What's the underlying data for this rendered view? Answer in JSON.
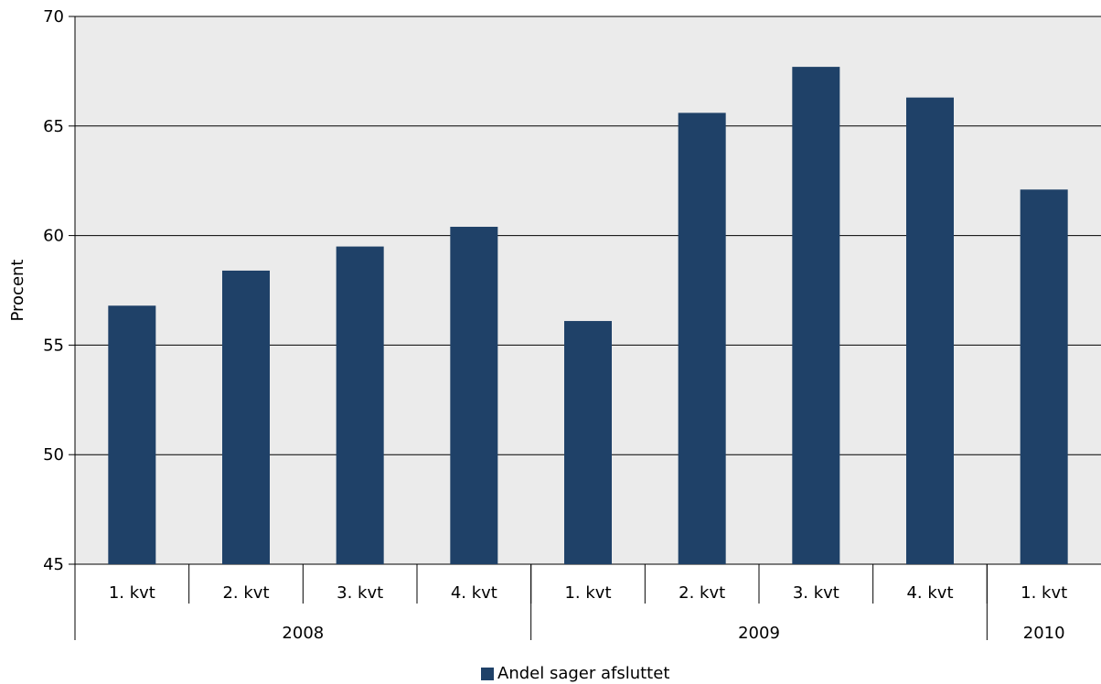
{
  "chart_data": {
    "type": "bar",
    "title": "",
    "xlabel": "",
    "ylabel": "Procent",
    "ylim": [
      45,
      70
    ],
    "yticks": [
      "45",
      "50",
      "55",
      "60",
      "65",
      "70"
    ],
    "ytick_values": [
      45,
      50,
      55,
      60,
      65,
      70
    ],
    "grid": true,
    "legend_position": "bottom",
    "categories": [
      "1. kvt",
      "2. kvt",
      "3. kvt",
      "4. kvt",
      "1. kvt",
      "2. kvt",
      "3. kvt",
      "4. kvt",
      "1. kvt"
    ],
    "groups": [
      {
        "label": "2008",
        "count": 4
      },
      {
        "label": "2009",
        "count": 4
      },
      {
        "label": "2010",
        "count": 1
      }
    ],
    "series": [
      {
        "name": "Andel sager afsluttet",
        "color": "#1f4168",
        "values": [
          56.8,
          58.4,
          59.5,
          60.4,
          56.1,
          65.6,
          67.7,
          66.3,
          62.1
        ]
      }
    ],
    "plot_background": "#ebebeb"
  }
}
